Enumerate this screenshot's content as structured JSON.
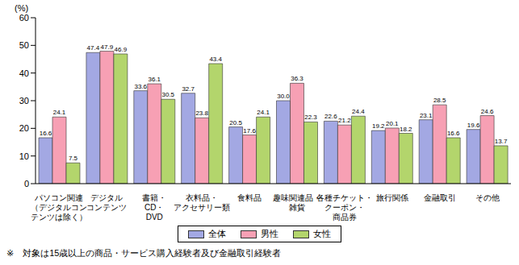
{
  "chart_data": {
    "type": "bar",
    "y_label": "(%)",
    "categories": [
      "パソコン関連\n（デジタルコン\nテンツは除く）",
      "デジタル\nコンテンツ",
      "書籍・\nCD・\nDVD",
      "衣料品・\nアクセサリー類",
      "食料品",
      "趣味関連品・\n雑貨",
      "各種チケット・\nクーポン・\n商品券",
      "旅行関係",
      "金融取引",
      "その他"
    ],
    "series": [
      {
        "name": "全体",
        "color": "#a3a8e3",
        "values": [
          16.6,
          47.4,
          33.6,
          32.7,
          20.5,
          30.0,
          22.6,
          19.2,
          23.1,
          19.6
        ],
        "value_labels": [
          "16.6",
          "47.4",
          "33.6",
          "32.7",
          "20.5",
          "30.0",
          "22.6",
          "19.2",
          "23.1",
          "19.6"
        ]
      },
      {
        "name": "男性",
        "color": "#f7a0b4",
        "values": [
          24.1,
          47.9,
          36.1,
          23.8,
          17.6,
          36.3,
          21.2,
          20.1,
          28.5,
          24.6
        ]
      },
      {
        "name": "女性",
        "color": "#b3d56c",
        "values": [
          7.5,
          46.9,
          30.5,
          43.4,
          24.1,
          22.3,
          24.4,
          18.2,
          16.6,
          13.7
        ]
      }
    ],
    "ylim": [
      0,
      60
    ],
    "yticks": [
      0,
      10,
      20,
      30,
      40,
      50,
      60
    ],
    "grid": false,
    "legend": "bottom",
    "data_labels": true,
    "footnote": "※　対象は15歳以上の商品・サービス購入経験者及び金融取引経験者"
  }
}
